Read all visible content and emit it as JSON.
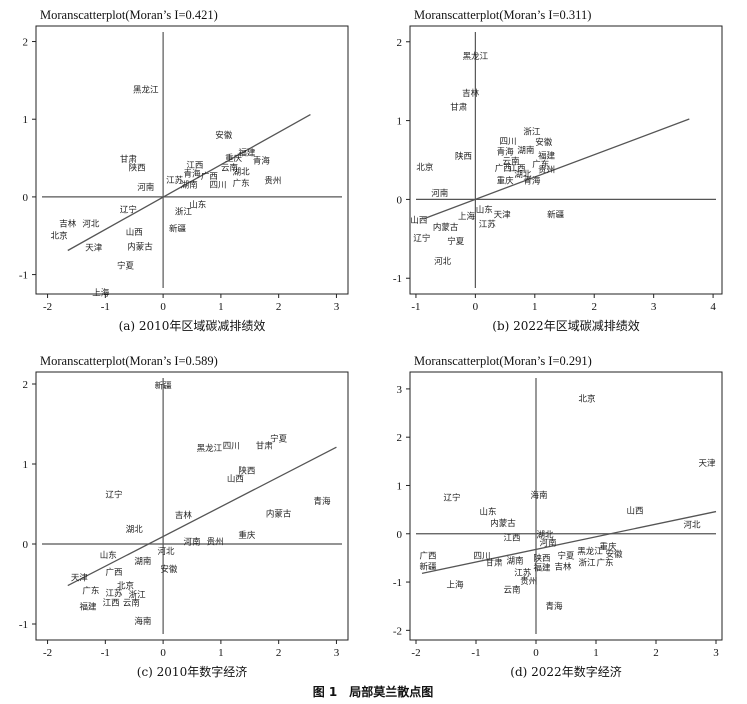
{
  "figure_caption": "图 1　局部莫兰散点图",
  "chart_data": [
    {
      "type": "scatter",
      "title": "Moranscatterplot(Moran’s I=0.421)",
      "caption": "(a) 2010年区域碳减排绩效",
      "xlim": [
        -2.2,
        3.2
      ],
      "ylim": [
        -1.25,
        2.2
      ],
      "xticks": [
        -2,
        -1,
        0,
        1,
        2,
        3
      ],
      "yticks": [
        -1,
        0,
        1,
        2
      ],
      "fit_line": {
        "x": [
          -1.65,
          2.55
        ],
        "y": [
          -0.69,
          1.06
        ]
      },
      "points": [
        {
          "name": "黑龙江",
          "x": -0.3,
          "y": 1.38
        },
        {
          "name": "安徽",
          "x": 1.05,
          "y": 0.8
        },
        {
          "name": "福建",
          "x": 1.45,
          "y": 0.57
        },
        {
          "name": "重庆",
          "x": 1.22,
          "y": 0.5
        },
        {
          "name": "青海",
          "x": 1.7,
          "y": 0.47
        },
        {
          "name": "云南",
          "x": 1.15,
          "y": 0.38
        },
        {
          "name": "湖北",
          "x": 1.35,
          "y": 0.33
        },
        {
          "name": "贵州",
          "x": 1.9,
          "y": 0.21
        },
        {
          "name": "甘肃",
          "x": -0.6,
          "y": 0.49
        },
        {
          "name": "陕西",
          "x": -0.45,
          "y": 0.38
        },
        {
          "name": "江西",
          "x": 0.55,
          "y": 0.41
        },
        {
          "name": "青海",
          "x": 0.5,
          "y": 0.3
        },
        {
          "name": "广西",
          "x": 0.8,
          "y": 0.27
        },
        {
          "name": "江苏",
          "x": 0.2,
          "y": 0.22
        },
        {
          "name": "湖南",
          "x": 0.45,
          "y": 0.16
        },
        {
          "name": "四川",
          "x": 0.95,
          "y": 0.16
        },
        {
          "name": "广东",
          "x": 1.35,
          "y": 0.18
        },
        {
          "name": "河南",
          "x": -0.3,
          "y": 0.13
        },
        {
          "name": "山东",
          "x": 0.6,
          "y": -0.1
        },
        {
          "name": "浙江",
          "x": 0.35,
          "y": -0.19
        },
        {
          "name": "辽宁",
          "x": -0.6,
          "y": -0.16
        },
        {
          "name": "吉林",
          "x": -1.65,
          "y": -0.34
        },
        {
          "name": "河北",
          "x": -1.25,
          "y": -0.34
        },
        {
          "name": "北京",
          "x": -1.8,
          "y": -0.5
        },
        {
          "name": "山西",
          "x": -0.5,
          "y": -0.45
        },
        {
          "name": "新疆",
          "x": 0.25,
          "y": -0.41
        },
        {
          "name": "天津",
          "x": -1.2,
          "y": -0.65
        },
        {
          "name": "内蒙古",
          "x": -0.4,
          "y": -0.64
        },
        {
          "name": "宁夏",
          "x": -0.65,
          "y": -0.88
        },
        {
          "name": "上海",
          "x": -1.08,
          "y": -1.23
        }
      ]
    },
    {
      "type": "scatter",
      "title": "Moranscatterplot(Moran’s I=0.311)",
      "caption": "(b) 2022年区域碳减排绩效",
      "xlim": [
        -1.1,
        4.15
      ],
      "ylim": [
        -1.2,
        2.2
      ],
      "xticks": [
        -1,
        0,
        1,
        2,
        3,
        4
      ],
      "yticks": [
        -1,
        0,
        1,
        2
      ],
      "fit_line": {
        "x": [
          -0.85,
          3.6
        ],
        "y": [
          -0.24,
          1.02
        ]
      },
      "points": [
        {
          "name": "黑龙江",
          "x": 0.0,
          "y": 1.82
        },
        {
          "name": "吉林",
          "x": -0.08,
          "y": 1.35
        },
        {
          "name": "甘肃",
          "x": -0.28,
          "y": 1.17
        },
        {
          "name": "浙江",
          "x": 0.95,
          "y": 0.86
        },
        {
          "name": "四川",
          "x": 0.55,
          "y": 0.74
        },
        {
          "name": "安徽",
          "x": 1.15,
          "y": 0.73
        },
        {
          "name": "湖南",
          "x": 0.85,
          "y": 0.63
        },
        {
          "name": "青海",
          "x": 0.5,
          "y": 0.61
        },
        {
          "name": "福建",
          "x": 1.2,
          "y": 0.56
        },
        {
          "name": "陕西",
          "x": -0.2,
          "y": 0.55
        },
        {
          "name": "云南",
          "x": 0.6,
          "y": 0.49
        },
        {
          "name": "广东",
          "x": 1.1,
          "y": 0.45
        },
        {
          "name": "北京",
          "x": -0.85,
          "y": 0.41
        },
        {
          "name": "广西",
          "x": 0.47,
          "y": 0.4
        },
        {
          "name": "江西",
          "x": 0.7,
          "y": 0.4
        },
        {
          "name": "贵州",
          "x": 1.2,
          "y": 0.38
        },
        {
          "name": "湖北",
          "x": 0.8,
          "y": 0.32
        },
        {
          "name": "重庆",
          "x": 0.5,
          "y": 0.24
        },
        {
          "name": "青海",
          "x": 0.95,
          "y": 0.24
        },
        {
          "name": "河南",
          "x": -0.6,
          "y": 0.08
        },
        {
          "name": "山东",
          "x": 0.15,
          "y": -0.13
        },
        {
          "name": "天津",
          "x": 0.45,
          "y": -0.19
        },
        {
          "name": "上海",
          "x": -0.15,
          "y": -0.21
        },
        {
          "name": "新疆",
          "x": 1.35,
          "y": -0.19
        },
        {
          "name": "山西",
          "x": -0.95,
          "y": -0.26
        },
        {
          "name": "江苏",
          "x": 0.2,
          "y": -0.31
        },
        {
          "name": "内蒙古",
          "x": -0.5,
          "y": -0.35
        },
        {
          "name": "辽宁",
          "x": -0.9,
          "y": -0.49
        },
        {
          "name": "宁夏",
          "x": -0.33,
          "y": -0.53
        },
        {
          "name": "河北",
          "x": -0.55,
          "y": -0.78
        }
      ]
    },
    {
      "type": "scatter",
      "title": "Moranscatterplot(Moran’s I=0.589)",
      "caption": "(c) 2010年数字经济",
      "xlim": [
        -2.2,
        3.2
      ],
      "ylim": [
        -1.2,
        2.15
      ],
      "xticks": [
        -2,
        -1,
        0,
        1,
        2,
        3
      ],
      "yticks": [
        -1,
        0,
        1,
        2
      ],
      "fit_line": {
        "x": [
          -1.65,
          3.0
        ],
        "y": [
          -0.52,
          1.21
        ]
      },
      "points": [
        {
          "name": "新疆",
          "x": 0.0,
          "y": 1.98
        },
        {
          "name": "宁夏",
          "x": 2.0,
          "y": 1.32
        },
        {
          "name": "四川",
          "x": 1.18,
          "y": 1.23
        },
        {
          "name": "甘肃",
          "x": 1.75,
          "y": 1.23
        },
        {
          "name": "黑龙江",
          "x": 0.8,
          "y": 1.2
        },
        {
          "name": "陕西",
          "x": 1.45,
          "y": 0.92
        },
        {
          "name": "山西",
          "x": 1.25,
          "y": 0.82
        },
        {
          "name": "辽宁",
          "x": -0.85,
          "y": 0.62
        },
        {
          "name": "青海",
          "x": 2.75,
          "y": 0.54
        },
        {
          "name": "内蒙古",
          "x": 2.0,
          "y": 0.38
        },
        {
          "name": "吉林",
          "x": 0.35,
          "y": 0.36
        },
        {
          "name": "湖北",
          "x": -0.5,
          "y": 0.19
        },
        {
          "name": "重庆",
          "x": 1.45,
          "y": 0.11
        },
        {
          "name": "河南",
          "x": 0.5,
          "y": 0.03
        },
        {
          "name": "贵州",
          "x": 0.9,
          "y": 0.03
        },
        {
          "name": "河北",
          "x": 0.05,
          "y": -0.09
        },
        {
          "name": "山东",
          "x": -0.95,
          "y": -0.14
        },
        {
          "name": "湖南",
          "x": -0.35,
          "y": -0.21
        },
        {
          "name": "安徽",
          "x": 0.1,
          "y": -0.31
        },
        {
          "name": "广西",
          "x": -0.85,
          "y": -0.35
        },
        {
          "name": "天津",
          "x": -1.45,
          "y": -0.42
        },
        {
          "name": "北京",
          "x": -0.65,
          "y": -0.52
        },
        {
          "name": "广东",
          "x": -1.25,
          "y": -0.58
        },
        {
          "name": "江苏",
          "x": -0.85,
          "y": -0.61
        },
        {
          "name": "浙江",
          "x": -0.45,
          "y": -0.63
        },
        {
          "name": "江西",
          "x": -0.9,
          "y": -0.73
        },
        {
          "name": "云南",
          "x": -0.55,
          "y": -0.73
        },
        {
          "name": "福建",
          "x": -1.3,
          "y": -0.78
        },
        {
          "name": "海南",
          "x": -0.35,
          "y": -0.96
        }
      ]
    },
    {
      "type": "scatter",
      "title": "Moranscatterplot(Moran’s I=0.291)",
      "caption": "(d) 2022年数字经济",
      "xlim": [
        -2.1,
        3.1
      ],
      "ylim": [
        -2.2,
        3.35
      ],
      "xticks": [
        -2,
        -1,
        0,
        1,
        2,
        3
      ],
      "yticks": [
        -2,
        -1,
        0,
        1,
        2,
        3
      ],
      "fit_line": {
        "x": [
          -1.9,
          3.0
        ],
        "y": [
          -0.82,
          0.46
        ]
      },
      "points": [
        {
          "name": "北京",
          "x": 0.85,
          "y": 2.8
        },
        {
          "name": "天津",
          "x": 2.85,
          "y": 1.47
        },
        {
          "name": "辽宁",
          "x": -1.4,
          "y": 0.75
        },
        {
          "name": "海南",
          "x": 0.05,
          "y": 0.8
        },
        {
          "name": "山东",
          "x": -0.8,
          "y": 0.46
        },
        {
          "name": "山西",
          "x": 1.65,
          "y": 0.48
        },
        {
          "name": "内蒙古",
          "x": -0.55,
          "y": 0.22
        },
        {
          "name": "河北",
          "x": 2.6,
          "y": 0.19
        },
        {
          "name": "江西",
          "x": -0.4,
          "y": -0.08
        },
        {
          "name": "湖北",
          "x": 0.15,
          "y": -0.02
        },
        {
          "name": "重庆",
          "x": 1.2,
          "y": -0.26
        },
        {
          "name": "河南",
          "x": 0.2,
          "y": -0.18
        },
        {
          "name": "黑龙江",
          "x": 0.9,
          "y": -0.36
        },
        {
          "name": "安徽",
          "x": 1.3,
          "y": -0.42
        },
        {
          "name": "广西",
          "x": -1.8,
          "y": -0.45
        },
        {
          "name": "四川",
          "x": -0.9,
          "y": -0.45
        },
        {
          "name": "陕西",
          "x": 0.1,
          "y": -0.5
        },
        {
          "name": "宁夏",
          "x": 0.5,
          "y": -0.45
        },
        {
          "name": "湖南",
          "x": -0.35,
          "y": -0.55
        },
        {
          "name": "甘肃",
          "x": -0.7,
          "y": -0.6
        },
        {
          "name": "浙江",
          "x": 0.85,
          "y": -0.6
        },
        {
          "name": "广东",
          "x": 1.15,
          "y": -0.6
        },
        {
          "name": "吉林",
          "x": 0.45,
          "y": -0.68
        },
        {
          "name": "新疆",
          "x": -1.8,
          "y": -0.68
        },
        {
          "name": "福建",
          "x": 0.1,
          "y": -0.7
        },
        {
          "name": "江苏",
          "x": -0.22,
          "y": -0.8
        },
        {
          "name": "贵州",
          "x": -0.12,
          "y": -0.98
        },
        {
          "name": "上海",
          "x": -1.35,
          "y": -1.05
        },
        {
          "name": "云南",
          "x": -0.4,
          "y": -1.15
        },
        {
          "name": "青海",
          "x": 0.3,
          "y": -1.5
        }
      ]
    }
  ]
}
